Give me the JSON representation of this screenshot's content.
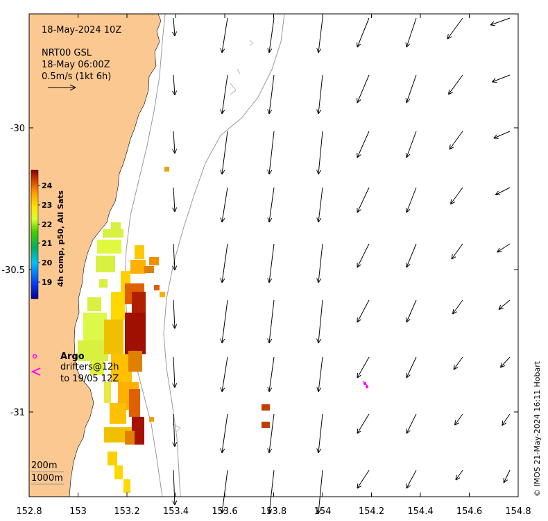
{
  "title": {
    "date": "18-May-2024 10Z",
    "product": "NRT00 GSL",
    "product_time": "18-May 06:00Z",
    "scale_label": "0.5m/s (1kt 6h)"
  },
  "axes": {
    "x_ticks": [
      "152.8",
      "153",
      "153.2",
      "153.4",
      "153.6",
      "153.8",
      "154",
      "154.2",
      "154.4",
      "154.6",
      "154.8"
    ],
    "y_ticks": [
      "-30",
      "-30.5",
      "-31"
    ],
    "lon_range": [
      152.8,
      154.8
    ],
    "lat_range": [
      -29.6,
      -31.3
    ]
  },
  "colorbar": {
    "label": "4h comp, p50, All Sats",
    "ticks": [
      "24",
      "23",
      "22",
      "21",
      "20",
      "19"
    ],
    "range": [
      18.5,
      24.6
    ]
  },
  "legend": {
    "argo_label": "Argo",
    "drifters_label": "drifters@12h",
    "drifters_to": "to 19/05 12Z",
    "argo_color": "#ff00ff",
    "drifter_color": "#ff00ff"
  },
  "isobaths": {
    "label_200": "200m",
    "label_1000": "1000m"
  },
  "credit": "© IMOS 21-May-2024 16:11 Hobart",
  "colors": {
    "land": "#fcc892",
    "arrow": "#000000",
    "isobath": "#999999"
  }
}
